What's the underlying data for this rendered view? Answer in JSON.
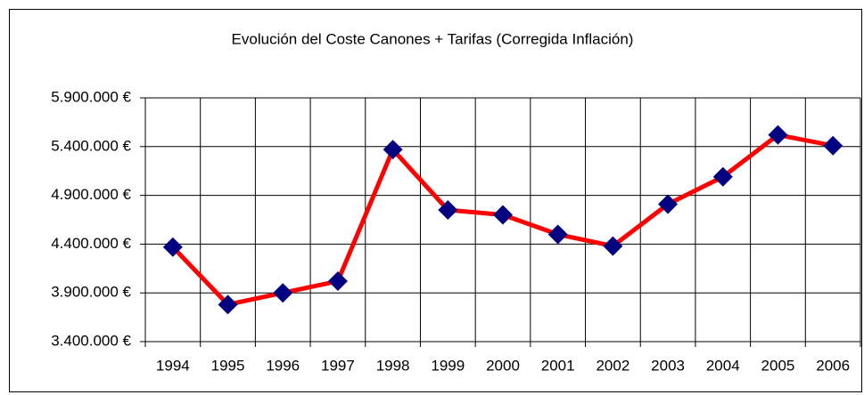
{
  "chart_data": {
    "type": "line",
    "title": "Evolución del Coste Canones + Tarifas  (Corregida Inflación)",
    "categories": [
      "1994",
      "1995",
      "1996",
      "1997",
      "1998",
      "1999",
      "2000",
      "2001",
      "2002",
      "2003",
      "2004",
      "2005",
      "2006"
    ],
    "series": [
      {
        "name": "Coste",
        "color": "#ff0000",
        "marker_color": "#000080",
        "values": [
          4370000,
          3780000,
          3900000,
          4020000,
          5370000,
          4750000,
          4700000,
          4500000,
          4380000,
          4810000,
          5090000,
          5520000,
          5410000
        ]
      }
    ],
    "ylim": [
      3400000,
      5900000
    ],
    "yticks": [
      {
        "value": 3400000,
        "label": "3.400.000 €"
      },
      {
        "value": 3900000,
        "label": "3.900.000 €"
      },
      {
        "value": 4400000,
        "label": "4.400.000 €"
      },
      {
        "value": 4900000,
        "label": "4.900.000 €"
      },
      {
        "value": 5400000,
        "label": "5.400.000 €"
      },
      {
        "value": 5900000,
        "label": "5.900.000 €"
      }
    ],
    "grid": true
  }
}
